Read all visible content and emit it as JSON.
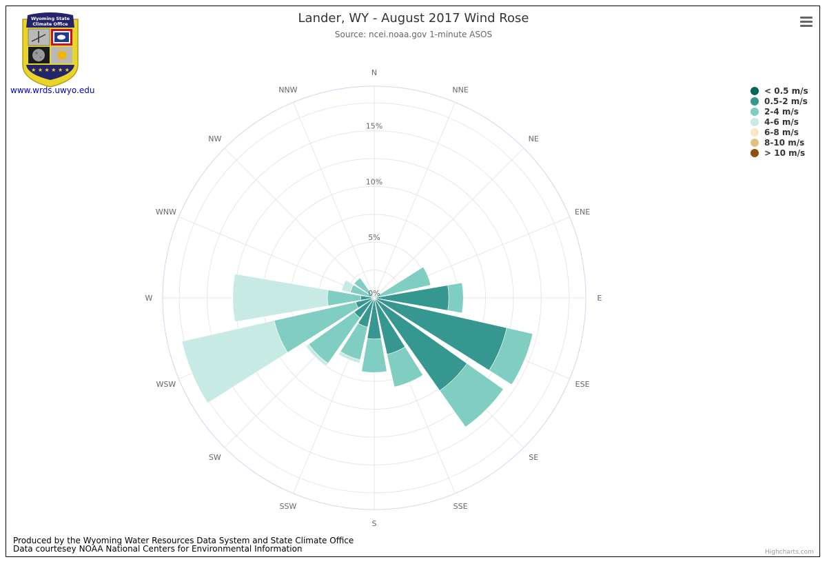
{
  "header": {
    "title": "Lander, WY - August 2017 Wind Rose",
    "subtitle": "Source: ncei.noaa.gov 1-minute ASOS"
  },
  "logo": {
    "line1": "Wyoming State",
    "line2": "Climate Office",
    "link": "www.wrds.uwyo.edu"
  },
  "footer": {
    "line1": "Produced by the Wyoming Water Resources Data System and State Climate Office",
    "line2": "Data courtesey NOAA National Centers for Environmental Information"
  },
  "credits": "Highcharts.com",
  "menu_icon": "hamburger-menu-icon",
  "chart_data": {
    "type": "windrose",
    "title": "Lander, WY - August 2017 Wind Rose",
    "subtitle": "Source: ncei.noaa.gov 1-minute ASOS",
    "directions": [
      "N",
      "NNE",
      "NE",
      "ENE",
      "E",
      "ESE",
      "SE",
      "SSE",
      "S",
      "SSW",
      "SW",
      "WSW",
      "W",
      "WNW",
      "NW",
      "NNW"
    ],
    "radial_ticks": [
      "0%",
      "5%",
      "10%",
      "15%"
    ],
    "radial_max": 19,
    "stacking": "normal",
    "legend_position": "right",
    "series": [
      {
        "name": "< 0.5 m/s",
        "color": "#01665e",
        "values": [
          0.2,
          0.2,
          0.2,
          0.2,
          0.2,
          0.2,
          0.2,
          0.2,
          0.2,
          0.2,
          0.2,
          0.2,
          0.2,
          0.2,
          0.2,
          0.2
        ]
      },
      {
        "name": "0.5-2 m/s",
        "color": "#35978f",
        "values": [
          0,
          0,
          0,
          0,
          6.5,
          12.0,
          10.0,
          5.0,
          3.5,
          2.5,
          2.0,
          1.5,
          1.0,
          0,
          0,
          0
        ]
      },
      {
        "name": "2-4 m/s",
        "color": "#80cdc1",
        "values": [
          0,
          0,
          0,
          5.0,
          1.3,
          2.4,
          4.0,
          3.0,
          3.0,
          3.0,
          5.0,
          7.5,
          3.0,
          2.0,
          2.0,
          0
        ]
      },
      {
        "name": "4-6 m/s",
        "color": "#c7eae5",
        "values": [
          0,
          0,
          0,
          0,
          0,
          0,
          0,
          0,
          0,
          0.3,
          0.3,
          8.5,
          8.5,
          0.8,
          0,
          0
        ]
      },
      {
        "name": "6-8 m/s",
        "color": "#f6e8c3",
        "values": [
          0,
          0,
          0,
          0,
          0,
          0,
          0,
          0,
          0,
          0,
          0,
          0,
          0,
          0,
          0,
          0
        ]
      },
      {
        "name": "8-10 m/s",
        "color": "#dfc27d",
        "values": [
          0,
          0,
          0,
          0,
          0,
          0,
          0,
          0,
          0,
          0,
          0,
          0,
          0,
          0,
          0,
          0
        ]
      },
      {
        "name": "> 10 m/s",
        "color": "#8c510a",
        "values": [
          0,
          0,
          0,
          0,
          0,
          0,
          0,
          0,
          0,
          0,
          0,
          0,
          0,
          0,
          0,
          0
        ]
      }
    ]
  }
}
